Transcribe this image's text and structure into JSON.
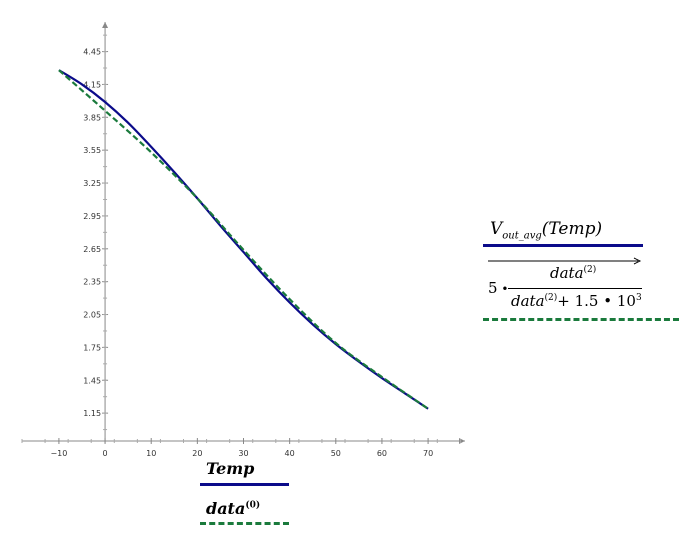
{
  "chart_data": {
    "type": "line",
    "x_ticks": [
      -10,
      0,
      10,
      20,
      30,
      40,
      50,
      60,
      70
    ],
    "y_ticks": [
      "1.15",
      "1.45",
      "1.75",
      "2.05",
      "2.35",
      "2.65",
      "2.95",
      "3.25",
      "3.55",
      "3.85",
      "4.15",
      "4.45"
    ],
    "xlim": [
      -18,
      78
    ],
    "ylim": [
      0.85,
      4.72
    ],
    "grid": false,
    "series": [
      {
        "name": "V_out_avg(Temp)",
        "style": "solid",
        "color": "#0b0b8a",
        "x": [
          -10,
          -5,
          0,
          5,
          10,
          15,
          20,
          25,
          30,
          35,
          40,
          45,
          50,
          55,
          60,
          65,
          70
        ],
        "y": [
          4.28,
          4.15,
          3.99,
          3.8,
          3.58,
          3.35,
          3.11,
          2.86,
          2.62,
          2.38,
          2.16,
          1.96,
          1.78,
          1.62,
          1.47,
          1.33,
          1.19
        ]
      },
      {
        "name": "5·data⁽²⁾/(data⁽²⁾+1.5·10³)",
        "style": "dashed",
        "color": "#1a7a3c",
        "x": [
          -10,
          0,
          10,
          20,
          30,
          40,
          50,
          60,
          70
        ],
        "y": [
          4.28,
          3.91,
          3.53,
          3.11,
          2.64,
          2.19,
          1.79,
          1.48,
          1.19
        ]
      }
    ]
  },
  "legend_x": {
    "text": "Temp",
    "data_text": "data",
    "data_sup": "(0)"
  },
  "legend_y": {
    "func_name": "V",
    "func_sub": "out_avg",
    "func_arg": "(Temp)",
    "coef": "5",
    "num_text": "data",
    "num_sup": "(2)",
    "den_text": "data",
    "den_sup": "(2)",
    "den_rest": "+ 1.5",
    "den_pow_base": "10",
    "den_pow_exp": "3"
  }
}
